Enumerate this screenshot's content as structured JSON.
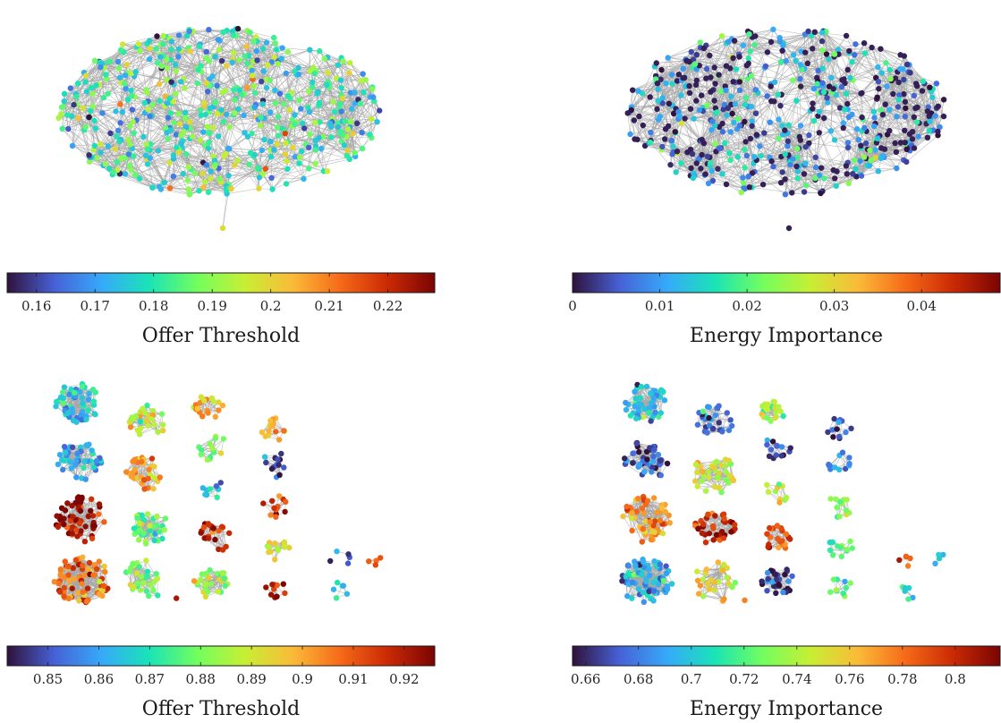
{
  "panels": [
    {
      "id": "top-left",
      "chart_data": {
        "type": "network",
        "layout": "single-component",
        "node_count": 560,
        "colorbar": {
          "label": "Offer Threshold",
          "range": [
            0.155,
            0.228
          ],
          "ticks": [
            0.16,
            0.17,
            0.18,
            0.19,
            0.2,
            0.21,
            0.22
          ],
          "tick_labels": [
            "0.16",
            "0.17",
            "0.18",
            "0.19",
            "0.2",
            "0.21",
            "0.22"
          ]
        }
      }
    },
    {
      "id": "top-right",
      "chart_data": {
        "type": "network",
        "layout": "single-component",
        "node_count": 560,
        "colorbar": {
          "label": "Energy Importance",
          "range": [
            0,
            0.049
          ],
          "ticks": [
            0,
            0.01,
            0.02,
            0.03,
            0.04
          ],
          "tick_labels": [
            "0",
            "0.01",
            "0.02",
            "0.03",
            "0.04"
          ]
        }
      }
    },
    {
      "id": "bottom-left",
      "chart_data": {
        "type": "network",
        "layout": "clustered-components",
        "colorbar": {
          "label": "Offer Threshold",
          "range": [
            0.842,
            0.926
          ],
          "ticks": [
            0.85,
            0.86,
            0.87,
            0.88,
            0.89,
            0.9,
            0.91,
            0.92
          ],
          "tick_labels": [
            "0.85",
            "0.86",
            "0.87",
            "0.88",
            "0.89",
            "0.9",
            "0.91",
            "0.92"
          ]
        }
      }
    },
    {
      "id": "bottom-right",
      "chart_data": {
        "type": "network",
        "layout": "clustered-components",
        "colorbar": {
          "label": "Energy Importance",
          "range": [
            0.655,
            0.817
          ],
          "ticks": [
            0.66,
            0.68,
            0.7,
            0.72,
            0.74,
            0.76,
            0.78,
            0.8
          ],
          "tick_labels": [
            "0.66",
            "0.68",
            "0.7",
            "0.72",
            "0.74",
            "0.76",
            "0.78",
            "0.8"
          ]
        }
      }
    }
  ],
  "colormap": {
    "name": "turbo",
    "stops": [
      "#30123b",
      "#4662d7",
      "#36aaf9",
      "#1ae4b6",
      "#72fe5e",
      "#c7ef34",
      "#fabb39",
      "#f66b19",
      "#cb2a04",
      "#7a0403"
    ]
  },
  "style": {
    "edge_color": "#a6a6a6",
    "node_edge": "none"
  }
}
